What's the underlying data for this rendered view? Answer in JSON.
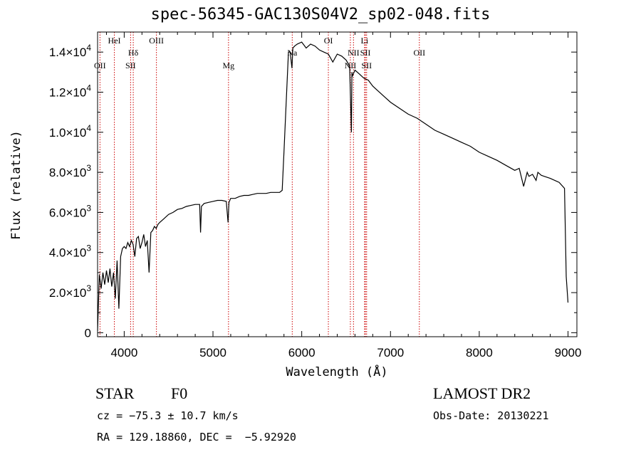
{
  "page": {
    "title": "spec-56345-GAC130S04V2_sp02-048.fits",
    "class_label": "STAR",
    "subclass_label": "F0",
    "survey": "LAMOST DR2",
    "cz_text": "cz = −75.3 ± 10.7 km/s",
    "obs_date": "Obs-Date: 20130221",
    "coords_text": "RA = 129.18860, DEC =  −5.92920"
  },
  "colors": {
    "line_marker": "#cc0000",
    "spectrum": "#000000",
    "axes": "#000000"
  },
  "chart_data": {
    "type": "line",
    "title": "spec-56345-GAC130S04V2_sp02-048.fits",
    "xlabel": "Wavelength (Å)",
    "ylabel": "Flux (relative)",
    "xlim": [
      3700,
      9100
    ],
    "ylim": [
      -200,
      15000
    ],
    "grid": false,
    "x_ticks": [
      4000,
      5000,
      6000,
      7000,
      8000,
      9000
    ],
    "x_tick_labels": [
      "4000",
      "5000",
      "6000",
      "7000",
      "8000",
      "9000"
    ],
    "y_ticks": [
      0,
      2000,
      4000,
      6000,
      8000,
      10000,
      12000,
      14000
    ],
    "y_tick_labels": [
      {
        "mant": "0",
        "exp": ""
      },
      {
        "mant": "2.0×10",
        "exp": "3"
      },
      {
        "mant": "4.0×10",
        "exp": "3"
      },
      {
        "mant": "6.0×10",
        "exp": "3"
      },
      {
        "mant": "8.0×10",
        "exp": "3"
      },
      {
        "mant": "1.0×10",
        "exp": "4"
      },
      {
        "mant": "1.2×10",
        "exp": "4"
      },
      {
        "mant": "1.4×10",
        "exp": "4"
      }
    ],
    "lines": [
      {
        "label": "OII",
        "wave": 3727,
        "row": 2
      },
      {
        "label": "HeI",
        "wave": 3889,
        "row": 0
      },
      {
        "label": "Hδ",
        "wave": 4102,
        "row": 1
      },
      {
        "label": "SII",
        "wave": 4072,
        "row": 2
      },
      {
        "label": "OIII",
        "wave": 4363,
        "row": 0
      },
      {
        "label": "Mg",
        "wave": 5175,
        "row": 2
      },
      {
        "label": "Na",
        "wave": 5893,
        "row": 1
      },
      {
        "label": "OI",
        "wave": 6300,
        "row": 0
      },
      {
        "label": "NII",
        "wave": 6548,
        "row": 2
      },
      {
        "label": "NII",
        "wave": 6583,
        "row": 1
      },
      {
        "label": "Li",
        "wave": 6708,
        "row": 0
      },
      {
        "label": "SII",
        "wave": 6717,
        "row": 1
      },
      {
        "label": "SII",
        "wave": 6731,
        "row": 2
      },
      {
        "label": "OII",
        "wave": 7325,
        "row": 1
      }
    ],
    "series": [
      {
        "x": [
          3700,
          3720,
          3740,
          3760,
          3780,
          3800,
          3820,
          3840,
          3860,
          3880,
          3900,
          3920,
          3940,
          3960,
          3980,
          4000,
          4020,
          4040,
          4060,
          4080,
          4100,
          4120,
          4140,
          4160,
          4180,
          4200,
          4220,
          4240,
          4260,
          4280,
          4300,
          4320,
          4340,
          4360,
          4380,
          4400,
          4450,
          4500,
          4550,
          4600,
          4650,
          4700,
          4750,
          4800,
          4850,
          4860,
          4870,
          4900,
          4950,
          5000,
          5050,
          5100,
          5150,
          5170,
          5180,
          5200,
          5250,
          5300,
          5350,
          5400,
          5450,
          5500,
          5550,
          5600,
          5650,
          5700,
          5750,
          5780,
          5800,
          5820,
          5850,
          5870,
          5890,
          5900,
          5920,
          5950,
          6000,
          6050,
          6100,
          6150,
          6200,
          6250,
          6300,
          6350,
          6400,
          6450,
          6500,
          6540,
          6560,
          6565,
          6570,
          6600,
          6650,
          6700,
          6750,
          6800,
          6850,
          6900,
          6950,
          7000,
          7100,
          7200,
          7300,
          7400,
          7500,
          7600,
          7700,
          7800,
          7900,
          8000,
          8100,
          8200,
          8300,
          8400,
          8450,
          8500,
          8540,
          8560,
          8600,
          8640,
          8660,
          8700,
          8800,
          8900,
          8960,
          8980,
          9000
        ],
        "y": [
          100,
          2900,
          2200,
          3000,
          2400,
          3100,
          2500,
          3200,
          2300,
          3000,
          1700,
          3600,
          1200,
          3800,
          4200,
          4300,
          4200,
          4500,
          4300,
          4600,
          4400,
          3800,
          4700,
          4800,
          4200,
          4500,
          4900,
          4300,
          4600,
          3000,
          5000,
          5100,
          5300,
          5200,
          5400,
          5500,
          5700,
          5900,
          6000,
          6150,
          6200,
          6300,
          6350,
          6400,
          6400,
          5000,
          6300,
          6450,
          6500,
          6550,
          6600,
          6600,
          6550,
          5500,
          6500,
          6700,
          6700,
          6800,
          6850,
          6850,
          6900,
          6950,
          6950,
          6950,
          7000,
          7000,
          7000,
          7100,
          9000,
          11000,
          14000,
          14000,
          13200,
          14200,
          14300,
          14400,
          14500,
          14200,
          14400,
          14300,
          14100,
          14000,
          13900,
          13500,
          13900,
          13800,
          13600,
          13300,
          10000,
          13000,
          12800,
          13100,
          12900,
          12700,
          12600,
          12300,
          12100,
          11900,
          11700,
          11500,
          11200,
          10900,
          10700,
          10400,
          10100,
          9900,
          9700,
          9500,
          9300,
          9000,
          8800,
          8600,
          8350,
          8100,
          8200,
          7300,
          8000,
          7800,
          7900,
          7600,
          8000,
          7850,
          7700,
          7500,
          7200,
          2800,
          1500
        ]
      }
    ]
  },
  "chart_text": {
    "xlabel": "Wavelength (Å)",
    "ylabel": "Flux (relative)"
  }
}
